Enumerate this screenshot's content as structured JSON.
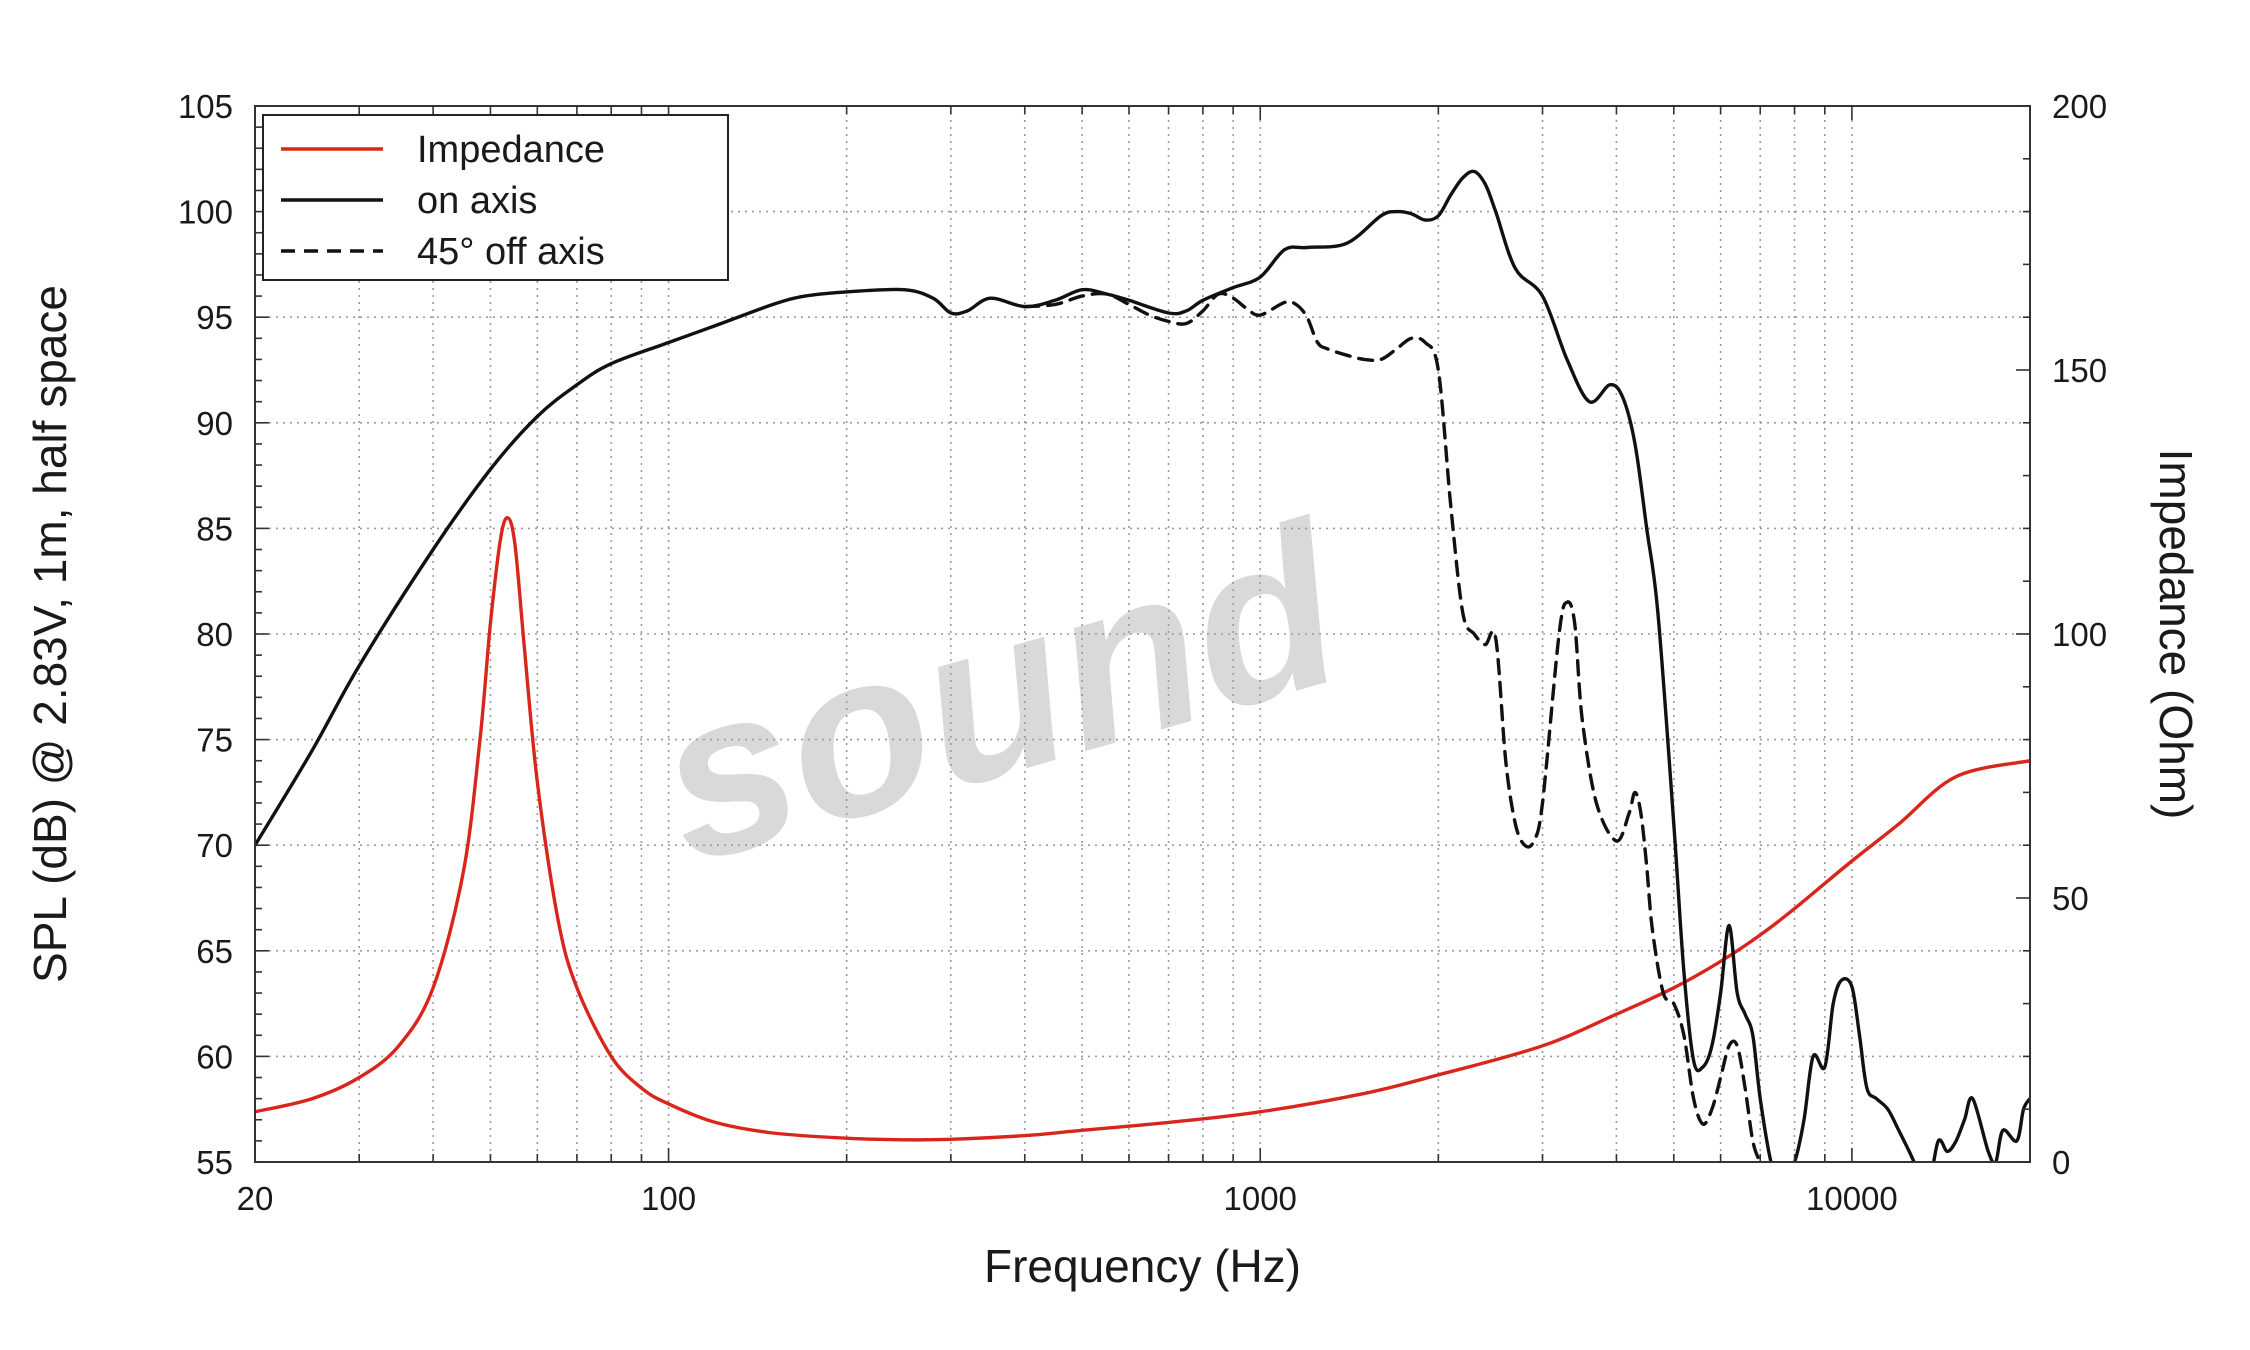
{
  "chart_data": {
    "type": "line",
    "x_scale": "log",
    "xlabel": "Frequency (Hz)",
    "ylabel": "SPL (dB) @ 2.83V, 1m, half space",
    "y2label": "Impedance (Ohm)",
    "xlim": [
      20,
      20000
    ],
    "ylim": [
      55,
      105
    ],
    "y2lim": [
      0,
      200
    ],
    "x_ticks": [
      20,
      100,
      1000,
      10000
    ],
    "x_tick_labels": [
      "20",
      "100",
      "1000",
      "10000"
    ],
    "y_ticks": [
      55,
      60,
      65,
      70,
      75,
      80,
      85,
      90,
      95,
      100,
      105
    ],
    "y_tick_labels": [
      "55",
      "60",
      "65",
      "70",
      "75",
      "80",
      "85",
      "90",
      "95",
      "100",
      "105"
    ],
    "y2_ticks": [
      0,
      50,
      100,
      150,
      200
    ],
    "y2_tick_labels": [
      "0",
      "50",
      "100",
      "150",
      "200"
    ],
    "grid": true,
    "legend_position": "top-left",
    "watermark": "sound",
    "colors": {
      "impedance": "#d9261c",
      "on_axis": "#111111",
      "off_axis": "#111111",
      "grid": "#9a9a9a",
      "frame": "#333333"
    },
    "series": [
      {
        "name": "Impedance",
        "axis": "right",
        "style": "solid",
        "color": "#d9261c",
        "x": [
          20,
          25,
          30,
          35,
          40,
          45,
          48,
          50,
          52,
          53.5,
          55,
          57,
          60,
          65,
          70,
          80,
          90,
          100,
          120,
          150,
          200,
          250,
          300,
          400,
          500,
          700,
          1000,
          1500,
          2000,
          3000,
          4000,
          5000,
          6000,
          7000,
          8000,
          10000,
          12000,
          15000,
          20000
        ],
        "y": [
          9.5,
          12,
          16,
          22,
          33,
          55,
          80,
          102,
          118,
          122,
          117,
          98,
          72,
          46,
          33,
          20,
          14,
          11,
          7.5,
          5.5,
          4.5,
          4.2,
          4.3,
          5,
          6,
          7.5,
          9.5,
          13,
          16.5,
          22,
          28,
          33,
          38,
          43,
          48,
          57,
          64,
          73,
          76
        ]
      },
      {
        "name": "on axis",
        "axis": "left",
        "style": "solid",
        "color": "#111111",
        "x": [
          20,
          25,
          30,
          40,
          50,
          60,
          70,
          80,
          100,
          120,
          150,
          170,
          200,
          250,
          280,
          300,
          320,
          350,
          400,
          450,
          500,
          550,
          600,
          700,
          750,
          800,
          900,
          1000,
          1100,
          1200,
          1400,
          1600,
          1700,
          1800,
          1900,
          2000,
          2100,
          2200,
          2300,
          2400,
          2500,
          2700,
          3000,
          3300,
          3600,
          3900,
          4100,
          4300,
          4500,
          4700,
          5000,
          5200,
          5400,
          5600,
          5800,
          6000,
          6200,
          6400,
          6600,
          6800,
          7000,
          7300,
          7600,
          8000,
          8300,
          8600,
          9000,
          9300,
          9600,
          10000,
          10300,
          10600,
          11000,
          11500,
          12000,
          12500,
          13000,
          13500,
          14000,
          14500,
          15000,
          15500,
          16000,
          17000,
          17500,
          18000,
          19000,
          19500,
          20000
        ],
        "y": [
          70,
          74.5,
          78.5,
          84,
          87.8,
          90.3,
          91.8,
          92.8,
          93.8,
          94.6,
          95.6,
          96,
          96.2,
          96.3,
          95.9,
          95.2,
          95.3,
          95.9,
          95.5,
          95.8,
          96.3,
          96.1,
          95.8,
          95.2,
          95.3,
          95.8,
          96.4,
          96.9,
          98.2,
          98.3,
          98.5,
          99.8,
          100,
          99.9,
          99.6,
          99.8,
          100.8,
          101.6,
          101.9,
          101.3,
          100,
          97.3,
          96,
          93,
          91,
          91.8,
          91.2,
          89,
          85,
          81,
          71,
          64,
          59.8,
          59.5,
          60.5,
          63,
          66.2,
          63,
          62,
          61,
          58,
          55,
          54,
          55,
          57,
          60,
          59.5,
          62.5,
          63.6,
          63.3,
          61,
          58.5,
          58,
          57.5,
          56.5,
          55.5,
          54.5,
          54,
          56,
          55.5,
          56,
          57,
          58,
          55.5,
          55,
          56.5,
          56,
          57.5,
          58
        ]
      },
      {
        "name": "45° off axis",
        "axis": "left",
        "style": "dashed",
        "color": "#111111",
        "x": [
          400,
          450,
          500,
          550,
          600,
          650,
          700,
          750,
          800,
          850,
          900,
          950,
          1000,
          1100,
          1150,
          1200,
          1250,
          1300,
          1400,
          1500,
          1600,
          1700,
          1800,
          1900,
          2000,
          2100,
          2200,
          2300,
          2400,
          2500,
          2600,
          2700,
          2800,
          2900,
          3000,
          3200,
          3300,
          3400,
          3500,
          3700,
          4000,
          4200,
          4300,
          4400,
          4500,
          4600,
          4800,
          5000,
          5200,
          5400,
          5600,
          5800,
          6000,
          6200,
          6400,
          6600,
          6800,
          7000,
          7200,
          7500
        ],
        "y": [
          95.5,
          95.6,
          96,
          96.1,
          95.6,
          95.1,
          94.8,
          94.7,
          95.3,
          96.1,
          95.9,
          95.4,
          95.1,
          95.7,
          95.6,
          95,
          93.8,
          93.5,
          93.2,
          93,
          93,
          93.5,
          94,
          93.8,
          92.5,
          86,
          81,
          80,
          79.5,
          79.8,
          74,
          71,
          70,
          70.2,
          72,
          80,
          81.5,
          80.5,
          76,
          72,
          70.2,
          71.5,
          72.5,
          71.5,
          69,
          66,
          63,
          62.5,
          61,
          58,
          56.8,
          57.5,
          59,
          60.5,
          60.5,
          58.5,
          56,
          55,
          54.5,
          54.3
        ]
      }
    ]
  }
}
